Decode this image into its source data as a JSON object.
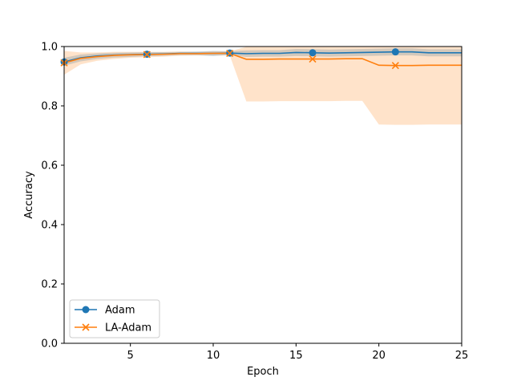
{
  "chart_data": {
    "type": "line",
    "title": "",
    "xlabel": "Epoch",
    "ylabel": "Accuracy",
    "xlim": [
      1,
      25
    ],
    "ylim": [
      0.0,
      1.0
    ],
    "xticks": [
      5,
      10,
      15,
      20,
      25
    ],
    "yticks": [
      0.0,
      0.2,
      0.4,
      0.6,
      0.8,
      1.0
    ],
    "xtick_labels": [
      "5",
      "10",
      "15",
      "20",
      "25"
    ],
    "ytick_labels": [
      "0.0",
      "0.2",
      "0.4",
      "0.6",
      "0.8",
      "1.0"
    ],
    "grid": false,
    "legend_position": "lower-left",
    "x": [
      1,
      2,
      3,
      4,
      5,
      6,
      7,
      8,
      9,
      10,
      11,
      12,
      13,
      14,
      15,
      16,
      17,
      18,
      19,
      20,
      21,
      22,
      23,
      24,
      25
    ],
    "series": [
      {
        "name": "Adam",
        "color": "#1f77b4",
        "marker": "circle",
        "marker_every": 5,
        "values": [
          0.948,
          0.962,
          0.968,
          0.971,
          0.973,
          0.974,
          0.975,
          0.977,
          0.977,
          0.977,
          0.978,
          0.976,
          0.977,
          0.977,
          0.98,
          0.979,
          0.978,
          0.979,
          0.98,
          0.981,
          0.982,
          0.982,
          0.979,
          0.979,
          0.979
        ],
        "lower": [
          0.935,
          0.95,
          0.958,
          0.963,
          0.965,
          0.967,
          0.969,
          0.971,
          0.971,
          0.968,
          0.972,
          0.965,
          0.966,
          0.966,
          0.968,
          0.967,
          0.966,
          0.967,
          0.968,
          0.969,
          0.97,
          0.97,
          0.967,
          0.967,
          0.967
        ],
        "upper": [
          0.962,
          0.973,
          0.977,
          0.979,
          0.98,
          0.981,
          0.981,
          0.982,
          0.983,
          0.985,
          0.984,
          0.987,
          0.988,
          0.988,
          0.992,
          0.991,
          0.99,
          0.991,
          0.992,
          0.993,
          0.994,
          0.994,
          0.991,
          0.991,
          0.991
        ]
      },
      {
        "name": "LA-Adam",
        "color": "#ff7f0e",
        "marker": "x",
        "marker_every": 5,
        "values": [
          0.945,
          0.96,
          0.966,
          0.97,
          0.972,
          0.973,
          0.974,
          0.976,
          0.976,
          0.977,
          0.977,
          0.957,
          0.957,
          0.958,
          0.958,
          0.958,
          0.958,
          0.959,
          0.959,
          0.937,
          0.936,
          0.936,
          0.937,
          0.937,
          0.937
        ],
        "lower": [
          0.905,
          0.94,
          0.952,
          0.958,
          0.962,
          0.964,
          0.966,
          0.969,
          0.97,
          0.97,
          0.97,
          0.815,
          0.815,
          0.816,
          0.816,
          0.816,
          0.816,
          0.817,
          0.817,
          0.737,
          0.736,
          0.736,
          0.737,
          0.737,
          0.737
        ],
        "upper": [
          0.985,
          0.98,
          0.98,
          0.982,
          0.982,
          0.982,
          0.982,
          0.983,
          0.982,
          0.984,
          0.984,
          0.999,
          0.999,
          1.0,
          1.0,
          1.0,
          1.0,
          1.0,
          1.0,
          1.0,
          1.0,
          1.0,
          1.0,
          1.0,
          1.0
        ]
      }
    ]
  }
}
